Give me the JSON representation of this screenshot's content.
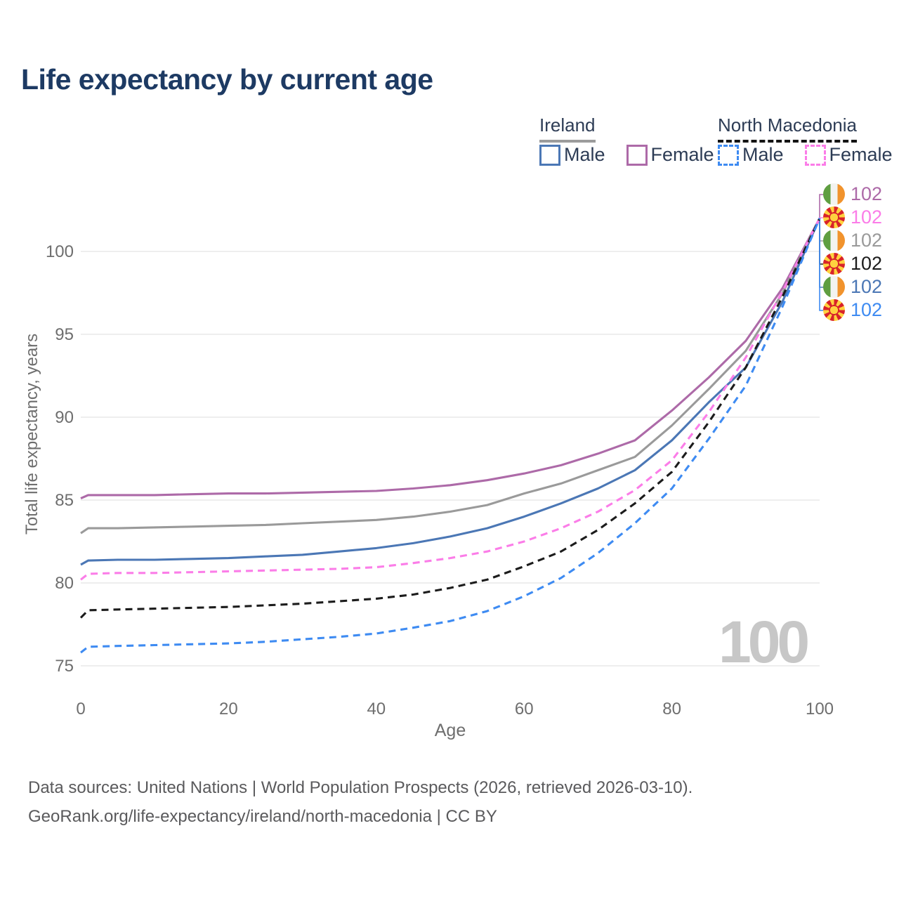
{
  "title": "Life expectancy by current age",
  "legend": {
    "groups": [
      {
        "label": "Ireland",
        "line_style": "solid",
        "underline_color": "#9c9c9c",
        "items": [
          {
            "label": "Male",
            "color": "#4b77b5",
            "dashed": false
          },
          {
            "label": "Female",
            "color": "#ad6aa8",
            "dashed": false
          }
        ]
      },
      {
        "label": "North Macedonia",
        "line_style": "dashed",
        "underline_color": "#141414",
        "items": [
          {
            "label": "Male",
            "color": "#3e8bf2",
            "dashed": true
          },
          {
            "label": "Female",
            "color": "#fb7de8",
            "dashed": true
          }
        ]
      }
    ]
  },
  "chart_data": {
    "type": "line",
    "title": "Life expectancy by current age",
    "xlabel": "Age",
    "ylabel": "Total life expectancy, years",
    "xlim": [
      0,
      100
    ],
    "ylim": [
      75,
      102
    ],
    "xticks": [
      0,
      20,
      40,
      60,
      80,
      100
    ],
    "yticks": [
      75,
      80,
      85,
      90,
      95,
      100
    ],
    "grid": "horizontal",
    "legend_position": "top-right",
    "x": [
      0,
      1,
      5,
      10,
      15,
      20,
      25,
      30,
      35,
      40,
      45,
      50,
      55,
      60,
      65,
      70,
      75,
      80,
      85,
      90,
      95,
      100
    ],
    "series": [
      {
        "name": "Ireland Female",
        "country": "Ireland",
        "sex": "Female",
        "color": "#ad6aa8",
        "dashed": false,
        "values": [
          85.1,
          85.3,
          85.3,
          85.3,
          85.35,
          85.4,
          85.4,
          85.45,
          85.5,
          85.55,
          85.7,
          85.9,
          86.2,
          86.6,
          87.1,
          87.8,
          88.6,
          90.4,
          92.4,
          94.6,
          97.8,
          102
        ]
      },
      {
        "name": "Ireland Both sexes",
        "country": "Ireland",
        "sex": "Both",
        "color": "#9a9a9a",
        "dashed": false,
        "values": [
          83.0,
          83.3,
          83.3,
          83.35,
          83.4,
          83.45,
          83.5,
          83.6,
          83.7,
          83.8,
          84.0,
          84.3,
          84.7,
          85.4,
          86.0,
          86.8,
          87.6,
          89.5,
          91.7,
          94.0,
          97.5,
          102
        ]
      },
      {
        "name": "Ireland Male",
        "country": "Ireland",
        "sex": "Male",
        "color": "#4b77b5",
        "dashed": false,
        "values": [
          81.1,
          81.35,
          81.4,
          81.4,
          81.45,
          81.5,
          81.6,
          81.7,
          81.9,
          82.1,
          82.4,
          82.8,
          83.3,
          84.0,
          84.8,
          85.7,
          86.8,
          88.6,
          90.9,
          93.0,
          97.0,
          102
        ]
      },
      {
        "name": "North Macedonia Female",
        "country": "North Macedonia",
        "sex": "Female",
        "color": "#fb7de8",
        "dashed": true,
        "values": [
          80.2,
          80.55,
          80.6,
          80.6,
          80.65,
          80.7,
          80.75,
          80.8,
          80.85,
          80.95,
          81.2,
          81.5,
          81.9,
          82.5,
          83.3,
          84.3,
          85.6,
          87.4,
          90.3,
          93.6,
          97.6,
          102
        ]
      },
      {
        "name": "North Macedonia Both sexes",
        "country": "North Macedonia",
        "sex": "Both",
        "color": "#1c1c1c",
        "dashed": true,
        "values": [
          77.9,
          78.35,
          78.4,
          78.45,
          78.5,
          78.55,
          78.65,
          78.75,
          78.9,
          79.05,
          79.3,
          79.7,
          80.2,
          81.0,
          81.9,
          83.2,
          84.8,
          86.7,
          89.7,
          93.0,
          97.3,
          102
        ]
      },
      {
        "name": "North Macedonia Male",
        "country": "North Macedonia",
        "sex": "Male",
        "color": "#3e8bf2",
        "dashed": true,
        "values": [
          75.8,
          76.15,
          76.2,
          76.25,
          76.3,
          76.35,
          76.45,
          76.6,
          76.75,
          76.95,
          77.3,
          77.7,
          78.3,
          79.2,
          80.3,
          81.8,
          83.6,
          85.7,
          88.7,
          91.9,
          96.7,
          102
        ]
      }
    ],
    "end_labels": [
      {
        "flag": "ireland",
        "series": "Ireland Female",
        "value": "102",
        "color": "#ad6aa8"
      },
      {
        "flag": "north-macedonia",
        "series": "North Macedonia Female",
        "value": "102",
        "color": "#fb7de8"
      },
      {
        "flag": "ireland",
        "series": "Ireland Both sexes",
        "value": "102",
        "color": "#9a9a9a"
      },
      {
        "flag": "north-macedonia",
        "series": "North Macedonia Both sexes",
        "value": "102",
        "color": "#1c1c1c"
      },
      {
        "flag": "ireland",
        "series": "Ireland Male",
        "value": "102",
        "color": "#4b77b5"
      },
      {
        "flag": "north-macedonia",
        "series": "North Macedonia Male",
        "value": "102",
        "color": "#3e8bf2"
      }
    ],
    "watermark": "100"
  },
  "footer": {
    "line1": "Data sources: United Nations | World Population Prospects (2026, retrieved 2026-03-10).",
    "line2": "GeoRank.org/life-expectancy/ireland/north-macedonia | CC BY"
  }
}
